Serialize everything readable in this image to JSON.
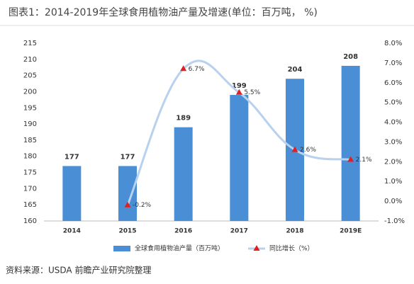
{
  "chart_data": {
    "type": "bar-line",
    "title": "图表1：2014-2019年全球食用植物油产量及增速(单位：百万吨， %)",
    "source": "资料来源：USDA 前瞻产业研究院整理",
    "categories": [
      "2014",
      "2015",
      "2016",
      "2017",
      "2018",
      "2019E"
    ],
    "series": [
      {
        "name": "全球食用植物油产量（百万吨）",
        "type": "bar",
        "color": "#4a8fd6",
        "values": [
          177,
          177,
          189,
          199,
          204,
          208
        ]
      },
      {
        "name": "同比增长（%）",
        "type": "line",
        "axis": "y2",
        "color": "#b7d1ee",
        "marker_color": "#e02020",
        "values": [
          null,
          -0.2,
          6.7,
          5.5,
          2.6,
          2.1
        ],
        "value_labels": [
          null,
          "-0.2%",
          "6.7%",
          "5.5%",
          "2.6%",
          "2.1%"
        ]
      }
    ],
    "ylim": [
      160,
      215
    ],
    "yticks": [
      160,
      165,
      170,
      175,
      180,
      185,
      190,
      195,
      200,
      205,
      210,
      215
    ],
    "y2lim": [
      -1.0,
      8.0
    ],
    "y2ticks": [
      {
        "value": -1.0,
        "label": "-1.0%"
      },
      {
        "value": 0.0,
        "label": "0.0%"
      },
      {
        "value": 1.0,
        "label": "1.0%"
      },
      {
        "value": 2.0,
        "label": "2.0%"
      },
      {
        "value": 3.0,
        "label": "3.0%"
      },
      {
        "value": 4.0,
        "label": "4.0%"
      },
      {
        "value": 5.0,
        "label": "5.0%"
      },
      {
        "value": 6.0,
        "label": "6.0%"
      },
      {
        "value": 7.0,
        "label": "7.0%"
      },
      {
        "value": 8.0,
        "label": "8.0%"
      }
    ],
    "grid": false
  }
}
